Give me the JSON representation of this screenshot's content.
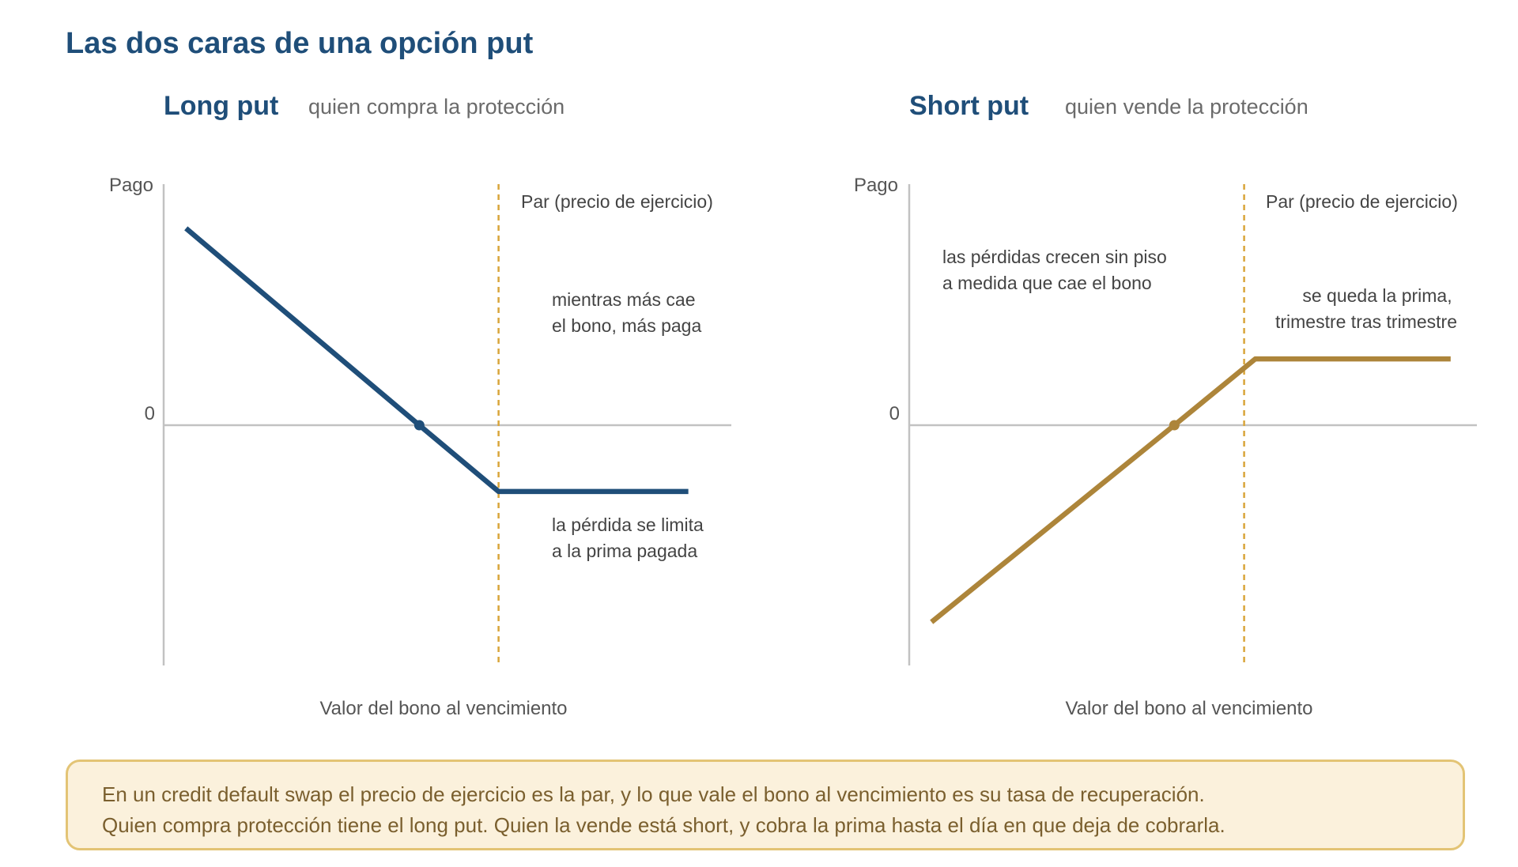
{
  "title": "Las dos caras de una opción put",
  "colors": {
    "long": "#1f4e79",
    "short": "#ad853a",
    "strike": "#d9a53a",
    "axis": "#c2c2c2",
    "note_bg": "#fbf1dc",
    "note_border": "#e3c475",
    "note_text": "#7a5f2e"
  },
  "chart_data": [
    {
      "type": "line",
      "title": "Long put",
      "subtitle": "quien compra la protección",
      "xlabel": "Valor del bono al vencimiento",
      "ylabel": "Pago",
      "y_zero_label": "0",
      "strike_label": "Par (precio de ejercicio)",
      "strike_x": 60,
      "xlim": [
        0,
        100
      ],
      "ylim": [
        -60,
        60
      ],
      "grid": false,
      "series": [
        {
          "x": [
            4,
            45.8,
            60,
            94
          ],
          "y": [
            49,
            0,
            -16.5,
            -16.5
          ]
        }
      ],
      "breakeven": {
        "x": 45.8,
        "y": 0
      },
      "annotations": [
        {
          "lines": [
            "mientras más cae",
            "el bono, más paga"
          ]
        },
        {
          "lines": [
            "la pérdida se limita",
            "a la prima pagada"
          ]
        }
      ]
    },
    {
      "type": "line",
      "title": "Short put",
      "subtitle": "quien vende la protección",
      "xlabel": "Valor del bono al vencimiento",
      "ylabel": "Pago",
      "y_zero_label": "0",
      "strike_label": "Par (precio de ejercicio)",
      "strike_x": 60,
      "xlim": [
        0,
        100
      ],
      "ylim": [
        -60,
        60
      ],
      "grid": false,
      "series": [
        {
          "x": [
            4,
            47.5,
            62,
            97
          ],
          "y": [
            -49,
            0,
            16.5,
            16.5
          ]
        }
      ],
      "breakeven": {
        "x": 47.5,
        "y": 0
      },
      "annotations": [
        {
          "lines": [
            "las pérdidas crecen sin piso",
            "a medida que cae el bono"
          ]
        },
        {
          "lines": [
            "se queda la prima,",
            "trimestre tras trimestre"
          ]
        }
      ]
    }
  ],
  "note": {
    "line1": "En un credit default swap el precio de ejercicio es la par, y lo que vale el bono al vencimiento es su tasa de recuperación.",
    "line2": "Quien compra protección tiene el long put. Quien la vende está short, y cobra la prima hasta el día en que deja de cobrarla."
  }
}
